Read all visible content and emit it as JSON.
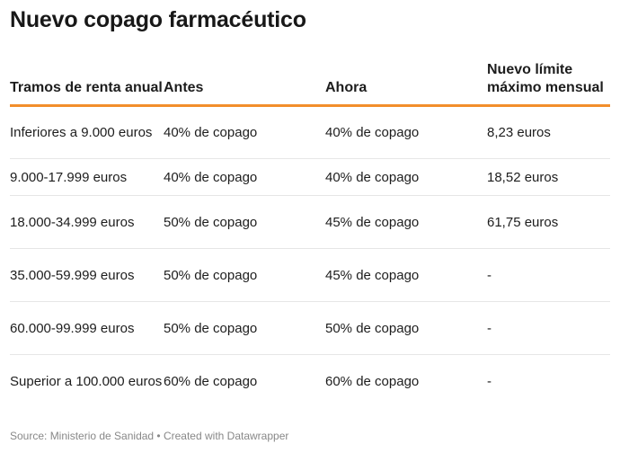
{
  "title": "Nuevo copago farmacéutico",
  "chart_data": {
    "type": "table",
    "columns": [
      "Tramos de renta anual",
      "Antes",
      "Ahora",
      "Nuevo límite máximo mensual"
    ],
    "rows": [
      [
        "Inferiores a 9.000 euros",
        "40% de copago",
        "40% de copago",
        "8,23 euros"
      ],
      [
        "9.000-17.999 euros",
        "40% de copago",
        "40% de copago",
        "18,52 euros"
      ],
      [
        "18.000-34.999 euros",
        "50% de copago",
        "45% de copago",
        "61,75 euros"
      ],
      [
        "35.000-59.999 euros",
        "50% de copago",
        "45% de copago",
        "-"
      ],
      [
        "60.000-99.999 euros",
        "50% de copago",
        "50% de copago",
        "-"
      ],
      [
        "Superior a 100.000 euros",
        "60% de copago",
        "60% de copago",
        "-"
      ]
    ]
  },
  "footer": {
    "source": "Source: Ministerio de Sanidad • Created with Datawrapper"
  },
  "colors": {
    "header_rule": "#f28e2b",
    "row_divider": "#e6e6e6",
    "footer_text": "#888888"
  }
}
